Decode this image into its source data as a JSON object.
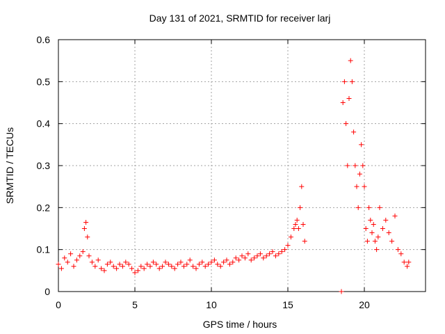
{
  "chart_data": {
    "type": "scatter",
    "title": "Day 131 of 2021, SRMTID for receiver larj",
    "xlabel": "GPS time / hours",
    "ylabel": "SRMTID / TECUs",
    "xlim": [
      0,
      24
    ],
    "ylim": [
      0,
      0.6
    ],
    "x_ticks": [
      0,
      5,
      10,
      15,
      20
    ],
    "x_tick_labels": [
      "0",
      "5",
      "10",
      "15",
      "20"
    ],
    "y_ticks": [
      0,
      0.1,
      0.2,
      0.3,
      0.4,
      0.5,
      0.6
    ],
    "y_tick_labels": [
      "0",
      "0.1",
      "0.2",
      "0.3",
      "0.4",
      "0.5",
      "0.6"
    ],
    "grid": true,
    "marker": "plus",
    "color": "#ff0000",
    "series": [
      {
        "name": "SRMTID",
        "x": [
          0.0,
          0.2,
          0.4,
          0.6,
          0.8,
          1.0,
          1.2,
          1.4,
          1.6,
          1.7,
          1.8,
          1.9,
          2.0,
          2.2,
          2.4,
          2.6,
          2.8,
          3.0,
          3.2,
          3.4,
          3.6,
          3.8,
          4.0,
          4.2,
          4.4,
          4.6,
          4.8,
          5.0,
          5.2,
          5.4,
          5.6,
          5.8,
          6.0,
          6.2,
          6.4,
          6.6,
          6.8,
          7.0,
          7.2,
          7.4,
          7.6,
          7.8,
          8.0,
          8.2,
          8.4,
          8.6,
          8.8,
          9.0,
          9.2,
          9.4,
          9.6,
          9.8,
          10.0,
          10.2,
          10.4,
          10.6,
          10.8,
          11.0,
          11.2,
          11.4,
          11.6,
          11.8,
          12.0,
          12.2,
          12.4,
          12.6,
          12.8,
          13.0,
          13.2,
          13.4,
          13.6,
          13.8,
          14.0,
          14.2,
          14.4,
          14.6,
          14.8,
          15.0,
          15.2,
          15.4,
          15.5,
          15.6,
          15.7,
          15.8,
          15.9,
          16.0,
          16.1,
          18.5,
          18.6,
          18.7,
          18.8,
          18.9,
          19.0,
          19.1,
          19.2,
          19.3,
          19.4,
          19.5,
          19.6,
          19.7,
          19.8,
          19.9,
          20.0,
          20.1,
          20.2,
          20.3,
          20.4,
          20.5,
          20.6,
          20.7,
          20.8,
          20.9,
          21.0,
          21.2,
          21.4,
          21.6,
          21.8,
          22.0,
          22.2,
          22.4,
          22.6,
          22.8,
          22.9
        ],
        "y": [
          0.065,
          0.055,
          0.08,
          0.07,
          0.09,
          0.06,
          0.075,
          0.085,
          0.095,
          0.15,
          0.165,
          0.13,
          0.085,
          0.07,
          0.06,
          0.075,
          0.055,
          0.05,
          0.065,
          0.07,
          0.06,
          0.055,
          0.065,
          0.06,
          0.07,
          0.065,
          0.055,
          0.045,
          0.05,
          0.06,
          0.055,
          0.065,
          0.06,
          0.07,
          0.065,
          0.055,
          0.06,
          0.07,
          0.065,
          0.06,
          0.055,
          0.065,
          0.07,
          0.06,
          0.065,
          0.075,
          0.06,
          0.055,
          0.065,
          0.07,
          0.06,
          0.065,
          0.07,
          0.075,
          0.065,
          0.06,
          0.07,
          0.075,
          0.065,
          0.07,
          0.08,
          0.075,
          0.085,
          0.08,
          0.09,
          0.075,
          0.08,
          0.085,
          0.09,
          0.08,
          0.085,
          0.09,
          0.095,
          0.085,
          0.09,
          0.095,
          0.1,
          0.11,
          0.13,
          0.15,
          0.16,
          0.17,
          0.15,
          0.2,
          0.25,
          0.16,
          0.12,
          0.0,
          0.45,
          0.5,
          0.4,
          0.3,
          0.46,
          0.55,
          0.5,
          0.38,
          0.3,
          0.25,
          0.2,
          0.28,
          0.35,
          0.3,
          0.25,
          0.15,
          0.12,
          0.2,
          0.17,
          0.14,
          0.16,
          0.12,
          0.1,
          0.13,
          0.2,
          0.15,
          0.17,
          0.14,
          0.12,
          0.18,
          0.1,
          0.09,
          0.07,
          0.06,
          0.07
        ]
      }
    ]
  }
}
